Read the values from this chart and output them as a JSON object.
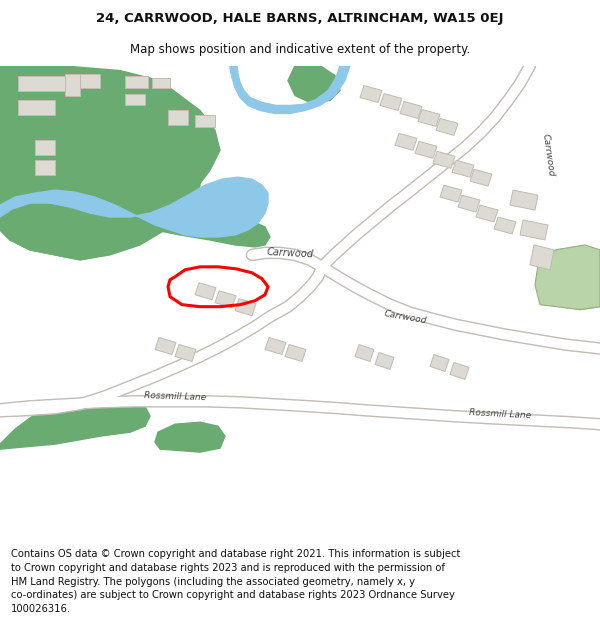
{
  "title_line1": "24, CARRWOOD, HALE BARNS, ALTRINCHAM, WA15 0EJ",
  "title_line2": "Map shows position and indicative extent of the property.",
  "footer_lines": [
    "Contains OS data © Crown copyright and database right 2021. This information is subject",
    "to Crown copyright and database rights 2023 and is reproduced with the permission of",
    "HM Land Registry. The polygons (including the associated geometry, namely x, y",
    "co-ordinates) are subject to Crown copyright and database rights 2023 Ordnance Survey",
    "100026316."
  ],
  "map_bg": "#f7f5f2",
  "green_color": "#6aab72",
  "blue_color": "#8ec8e8",
  "road_outline": "#c8c4be",
  "building_color": "#dddad4",
  "building_outline": "#c0bcb4",
  "plot_color": "#ff0000",
  "yellow_color": "#f0d040",
  "green_light": "#b8d4a8"
}
